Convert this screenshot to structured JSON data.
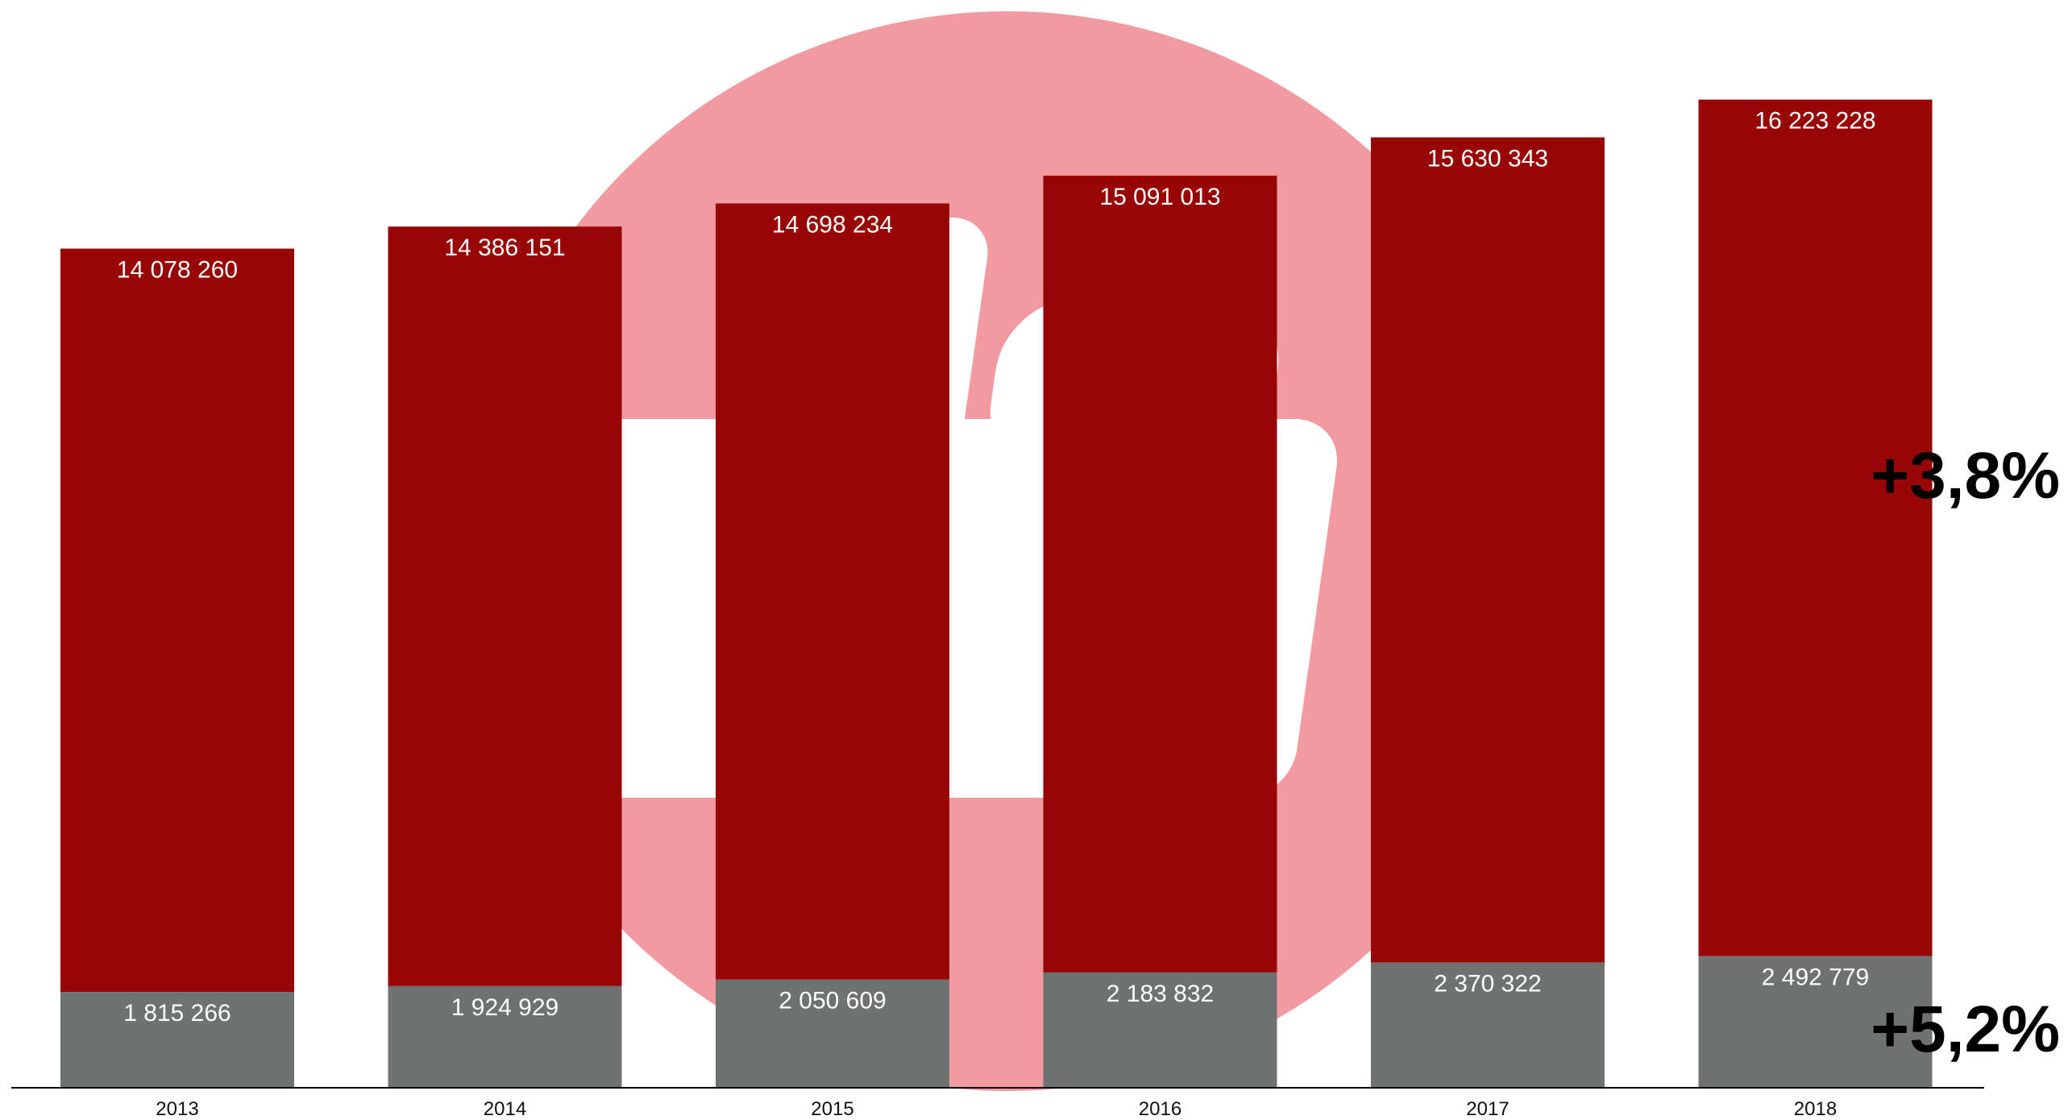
{
  "colors": {
    "primary": "#980606",
    "secondary": "#6e7371",
    "watermark_circle": "#f29aa0",
    "watermark_mark": "#ffffff",
    "axis": "#000000"
  },
  "chart_data": {
    "type": "bar",
    "stacked": true,
    "title": "",
    "xlabel": "",
    "ylabel": "",
    "grid": false,
    "legend": "none",
    "ylim": [
      0,
      19000000
    ],
    "categories": [
      "2013",
      "2014",
      "2015",
      "2016",
      "2017",
      "2018"
    ],
    "series": [
      {
        "values": [
          1815266,
          1924929,
          2050609,
          2183832,
          2370322,
          2492779
        ],
        "labels": [
          "1 815 266",
          "1 924 929",
          "2 050 609",
          "2 183 832",
          "2 370 322",
          "2 492 779"
        ]
      },
      {
        "values": [
          14078260,
          14386151,
          14698234,
          15091013,
          15630343,
          16223228
        ],
        "labels": [
          "14 078 260",
          "14 386 151",
          "14 698 234",
          "15 091 013",
          "15 630 343",
          "16 223 228"
        ]
      }
    ],
    "annotations": [
      "+3,8%",
      "+5,2%"
    ]
  }
}
